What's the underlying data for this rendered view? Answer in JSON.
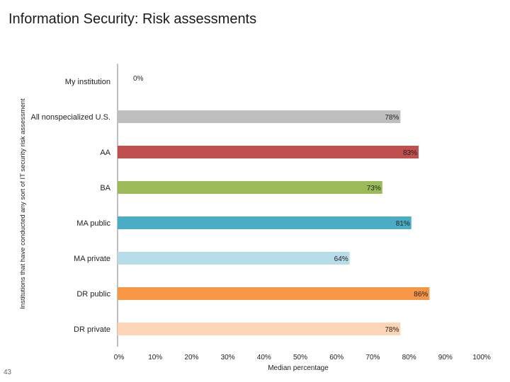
{
  "page": {
    "title": "Information Security: Risk assessments",
    "page_number": "43"
  },
  "chart_data": {
    "type": "bar",
    "orientation": "horizontal",
    "categories": [
      "My institution",
      "All nonspecialized U.S.",
      "AA",
      "BA",
      "MA public",
      "MA private",
      "DR public",
      "DR private"
    ],
    "values": [
      0,
      78,
      83,
      73,
      81,
      64,
      86,
      78
    ],
    "value_labels": [
      "0%",
      "78%",
      "83%",
      "73%",
      "81%",
      "64%",
      "86%",
      "78%"
    ],
    "colors": [
      "#ffffff",
      "#bfbfbf",
      "#c0504d",
      "#9bbb59",
      "#4bacc6",
      "#b7dde8",
      "#f79646",
      "#fbd5b5"
    ],
    "title": "Information Security: Risk assessments",
    "xlabel": "Median percentage",
    "ylabel": "Institutions that have conducted any sort of IT security risk assessment",
    "xlim": [
      0,
      100
    ],
    "xticks": [
      0,
      10,
      20,
      30,
      40,
      50,
      60,
      70,
      80,
      90,
      100
    ],
    "xtick_labels": [
      "0%",
      "10%",
      "20%",
      "30%",
      "40%",
      "50%",
      "60%",
      "70%",
      "80%",
      "90%",
      "100%"
    ],
    "grid": false,
    "legend": "none"
  }
}
